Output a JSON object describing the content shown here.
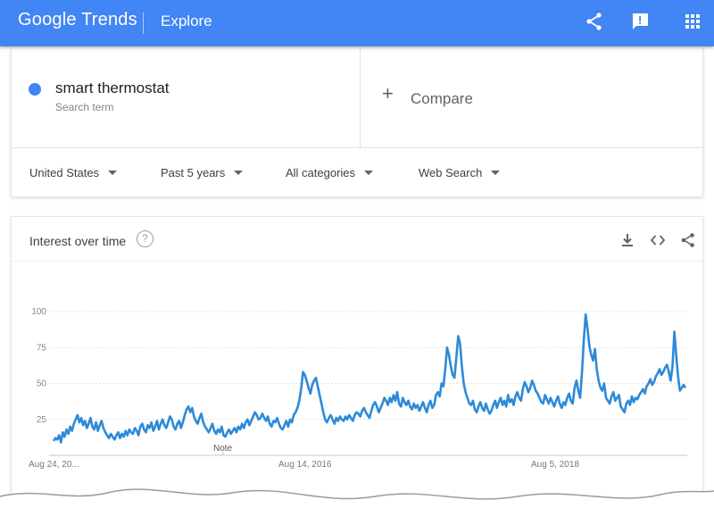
{
  "header": {
    "logo_text": "Google Trends",
    "section": "Explore",
    "icons": [
      "share-icon",
      "feedback-icon",
      "apps-grid-icon"
    ],
    "bar_color": "#4285f4"
  },
  "search_term": {
    "name": "smart thermostat",
    "sublabel": "Search term",
    "color": "#4285f4"
  },
  "compare": {
    "plus": "+",
    "label": "Compare"
  },
  "filters": [
    {
      "label": "United States"
    },
    {
      "label": "Past 5 years"
    },
    {
      "label": "All categories"
    },
    {
      "label": "Web Search"
    }
  ],
  "interest_card": {
    "title": "Interest over time",
    "help": "?",
    "icons": [
      "download-icon",
      "embed-icon",
      "share-icon"
    ]
  },
  "chart_data": {
    "type": "line",
    "y_ticks": [
      25,
      50,
      75,
      100
    ],
    "ylim": [
      0,
      100
    ],
    "x_labels": [
      "Aug 24, 20...",
      "Aug 14, 2016",
      "Aug 5, 2018"
    ],
    "note_label": "Note",
    "line_color": "#2d8ad8",
    "series": [
      {
        "values": [
          10,
          12,
          11,
          14,
          9,
          16,
          13,
          18,
          15,
          20,
          17,
          22,
          25,
          28,
          23,
          26,
          21,
          24,
          19,
          22,
          26,
          20,
          18,
          23,
          17,
          21,
          24,
          19,
          16,
          14,
          12,
          15,
          13,
          11,
          14,
          16,
          12,
          15,
          13,
          17,
          14,
          18,
          16,
          15,
          19,
          17,
          14,
          20,
          22,
          18,
          16,
          21,
          19,
          23,
          17,
          20,
          24,
          18,
          22,
          25,
          21,
          19,
          23,
          27,
          25,
          20,
          18,
          22,
          24,
          19,
          23,
          28,
          32,
          34,
          30,
          33,
          27,
          24,
          22,
          26,
          29,
          23,
          20,
          18,
          16,
          19,
          22,
          17,
          15,
          18,
          16,
          20,
          14,
          13,
          16,
          18,
          15,
          17,
          19,
          16,
          20,
          18,
          22,
          19,
          23,
          25,
          21,
          24,
          27,
          30,
          28,
          25,
          26,
          29,
          26,
          24,
          27,
          22,
          20,
          24,
          23,
          26,
          22,
          19,
          18,
          21,
          24,
          20,
          25,
          23,
          28,
          30,
          33,
          38,
          46,
          58,
          56,
          52,
          47,
          43,
          49,
          52,
          54,
          48,
          42,
          36,
          30,
          25,
          23,
          26,
          28,
          25,
          22,
          26,
          24,
          27,
          25,
          24,
          27,
          25,
          28,
          26,
          24,
          28,
          30,
          29,
          27,
          31,
          33,
          30,
          28,
          26,
          31,
          35,
          37,
          34,
          30,
          33,
          36,
          40,
          38,
          35,
          40,
          37,
          42,
          38,
          44,
          36,
          34,
          40,
          37,
          35,
          38,
          34,
          32,
          36,
          33,
          35,
          31,
          34,
          37,
          33,
          30,
          35,
          38,
          33,
          35,
          42,
          44,
          41,
          50,
          48,
          60,
          75,
          70,
          62,
          56,
          54,
          68,
          83,
          78,
          62,
          50,
          44,
          40,
          36,
          35,
          38,
          32,
          30,
          34,
          37,
          33,
          31,
          36,
          32,
          29,
          31,
          35,
          38,
          33,
          37,
          40,
          35,
          38,
          34,
          42,
          37,
          39,
          35,
          41,
          44,
          40,
          38,
          46,
          51,
          48,
          44,
          47,
          52,
          49,
          45,
          43,
          40,
          37,
          36,
          42,
          39,
          36,
          40,
          37,
          34,
          38,
          41,
          36,
          33,
          37,
          35,
          40,
          43,
          38,
          36,
          47,
          52,
          45,
          40,
          58,
          80,
          98,
          88,
          76,
          70,
          66,
          74,
          60,
          52,
          47,
          45,
          50,
          40,
          38,
          36,
          41,
          44,
          38,
          40,
          42,
          34,
          32,
          30,
          36,
          38,
          35,
          41,
          37,
          40,
          39,
          42,
          44,
          46,
          43,
          48,
          50,
          53,
          49,
          51,
          55,
          57,
          60,
          56,
          58,
          61,
          63,
          58,
          52,
          62,
          86,
          70,
          55,
          45,
          47,
          49,
          47
        ]
      }
    ]
  }
}
